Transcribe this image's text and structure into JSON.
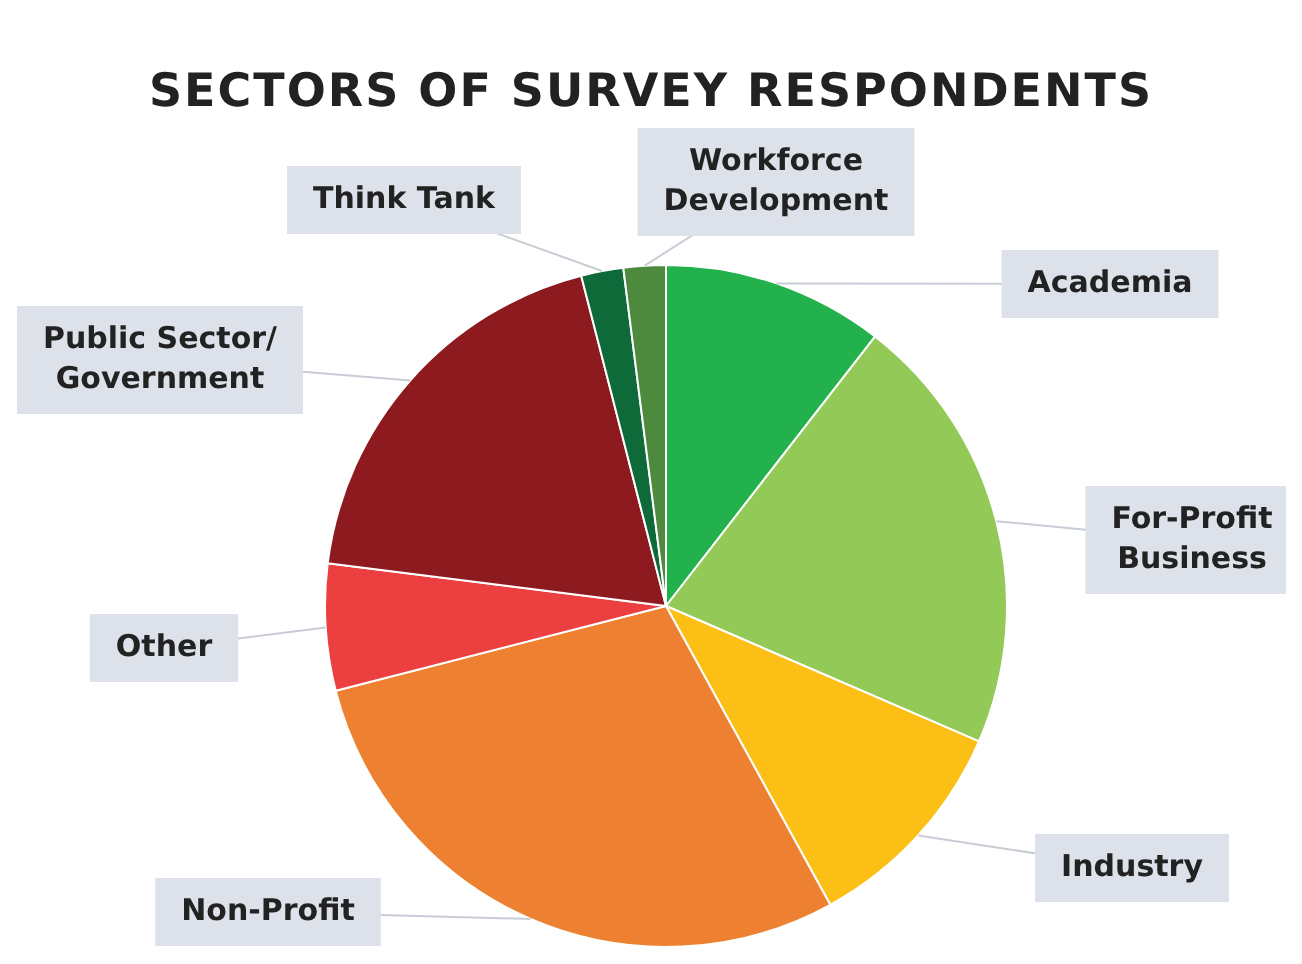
{
  "chart_data": {
    "type": "pie",
    "title": "SECTORS OF SURVEY RESPONDENTS",
    "categories": [
      "Academia",
      "For-Profit Business",
      "Industry",
      "Non-Profit",
      "Other",
      "Public Sector/ Government",
      "Think Tank",
      "Workforce Development"
    ],
    "values": [
      10.5,
      21,
      10.5,
      29,
      6,
      19,
      2,
      2
    ],
    "colors": [
      "#22b14c",
      "#92c957",
      "#fbbf16",
      "#ee8131",
      "#ec4040",
      "#8c1a1e",
      "#0f6a3a",
      "#4e8a3e"
    ],
    "legend": false
  }
}
